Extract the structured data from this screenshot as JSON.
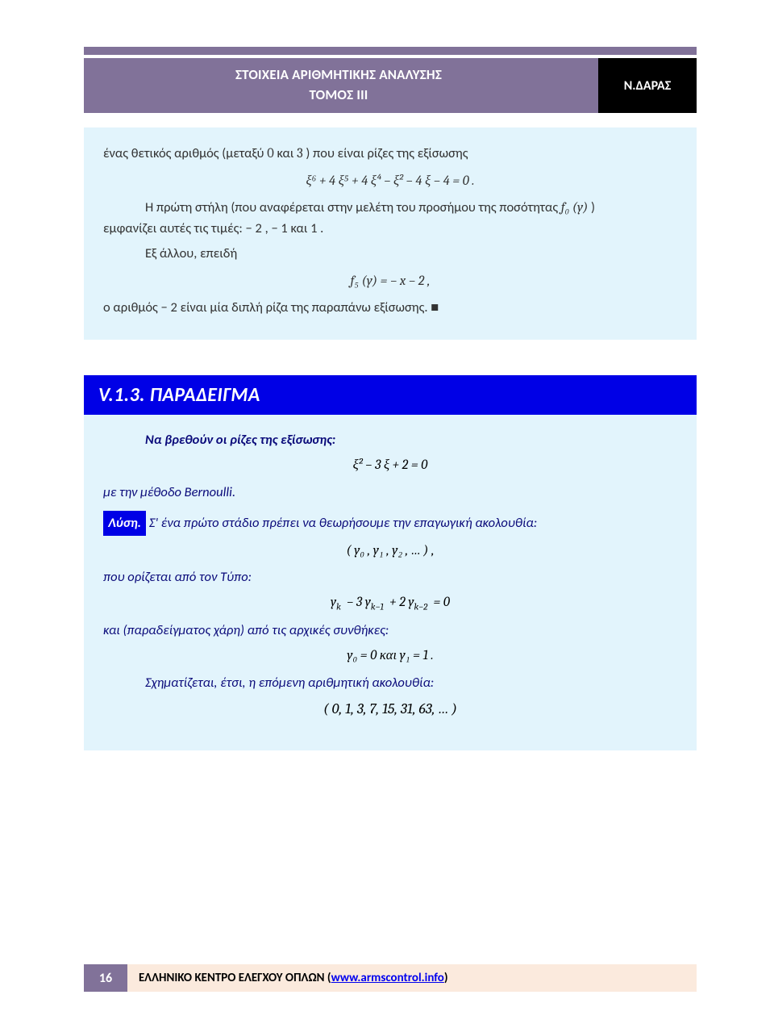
{
  "header": {
    "title_line1": "ΣΤΟΙΧΕΙΑ ΑΡΙΘΜΗΤΙΚΗΣ ΑΝΑΛΥΣΗΣ",
    "title_line2": "ΤΟΜΟΣ ΙΙΙ",
    "author": "Ν.ΔΑΡΑΣ",
    "bg_color": "#817299",
    "author_bg": "#000000",
    "text_color": "#ffffff"
  },
  "block1": {
    "bg_color": "#e2f4fc",
    "text_a": "ένας θετικός αριθμός  (μεταξύ ",
    "zero": "0",
    "text_a2": "  και ",
    "three": "3",
    "text_a3": " ) που είναι ρίζες της εξίσωσης",
    "formula1": "ξ⁶ + 4 ξ⁵ + 4 ξ⁴ − ξ² − 4 ξ − 4 = 0 .",
    "text_b1": "Η πρώτη στήλη (που αναφέρεται στην μελέτη του προσήμου της ποσότητας  ",
    "f0": "f₀ (y)",
    "text_b2": " )",
    "text_c": "εμφανίζει αυτές τις τιμές:  − 2 ,   − 1  και  1 .",
    "text_d": "Εξ άλλου, επειδή",
    "formula2": "f₅ (y) = − x − 2 ,",
    "text_e": "ο αριθμός  − 2  είναι μία διπλή ρίζα της παραπάνω εξίσωσης. ■"
  },
  "heading": {
    "label": "V.1.3. ΠΑΡΑΔΕΙΓΜΑ",
    "bg_color": "#0000e6",
    "text_color": "#ffffff"
  },
  "block2": {
    "bg_color": "#e2f4fc",
    "text_color": "#0a0a7a",
    "problem_line": "Να βρεθούν οι ρίζες της εξίσωσης:",
    "formula1": "ξ² − 3 ξ + 2 = 0",
    "bernoulli": "με την μέθοδο Bernoulli.",
    "solution_label": "Λύση.",
    "sol_a": " Σ' ένα πρώτο στάδιο πρέπει να θεωρήσουμε την επαγωγική ακολουθία:",
    "formula2": "( y₀ , y₁ , y₂ , … ) ,",
    "sol_b": "που ορίζεται από τον Τύπο:",
    "formula3_html": "y<sub class='sub'>k</sub> − 3 y<sub class='sub'>k−1</sub> + 2 y<sub class='sub'>k−2</sub> = 0",
    "sol_c": "και (παραδείγματος χάρη) από τις αρχικές συνθήκες:",
    "formula4": "y₀ = 0  και  y₁ = 1 .",
    "sol_d": "Σχηματίζεται, έτσι, η επόμενη αριθμητική ακολουθία:",
    "formula5": "( 0, 1, 3, 7, 15, 31, 63, … )"
  },
  "footer": {
    "page_number": "16",
    "page_bg": "#817299",
    "text_bg": "#fbeadd",
    "label": "ΕΛΛΗΝΙΚΟ ΚΕΝΤΡΟ ΕΛΕΓΧΟΥ ΟΠΛΩΝ  (",
    "link_text": "www.armscontrol.info",
    "label_end": ")"
  }
}
